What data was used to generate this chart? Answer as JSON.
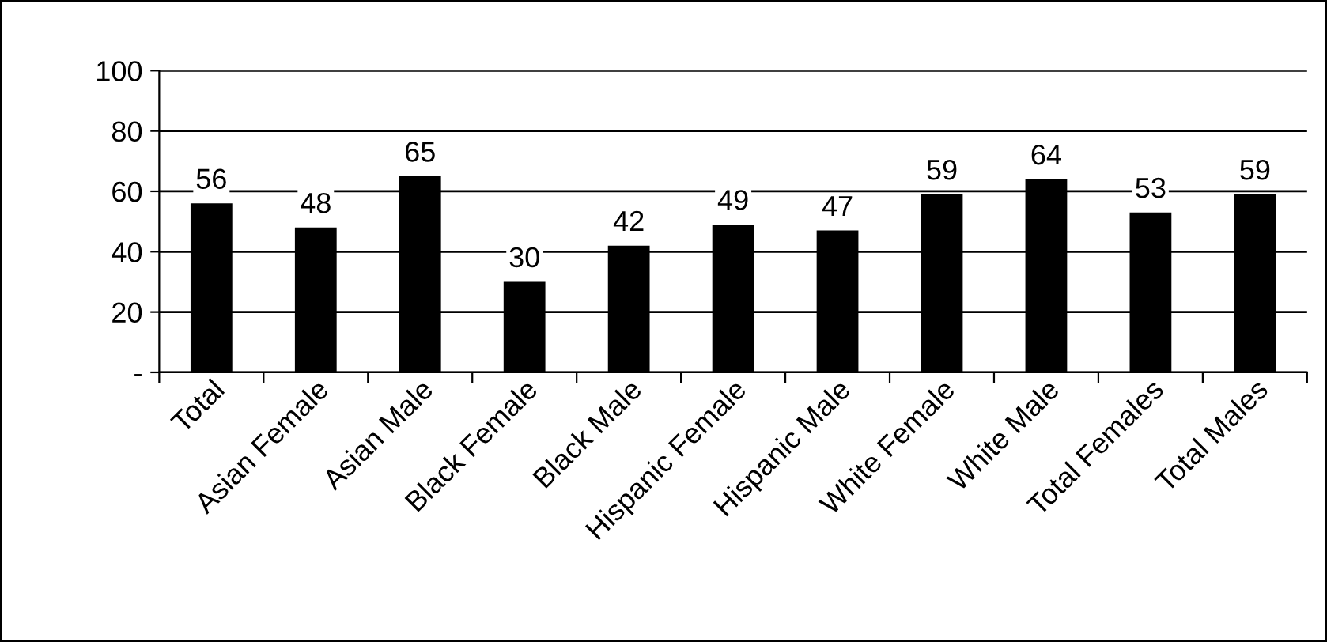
{
  "chart_data": {
    "type": "bar",
    "categories": [
      "Total",
      "Asian Female",
      "Asian Male",
      "Black Female",
      "Black Male",
      "Hispanic Female",
      "Hispanic Male",
      "White Female",
      "White Male",
      "Total Females",
      "Total Males"
    ],
    "values": [
      56,
      48,
      65,
      30,
      42,
      49,
      47,
      59,
      64,
      53,
      59
    ],
    "color": "#000000",
    "ylim": [
      0,
      100
    ],
    "yticks": [
      {
        "value": 0,
        "label": "-"
      },
      20,
      40,
      60,
      80,
      100
    ],
    "grid": "y",
    "data_labels": true
  }
}
